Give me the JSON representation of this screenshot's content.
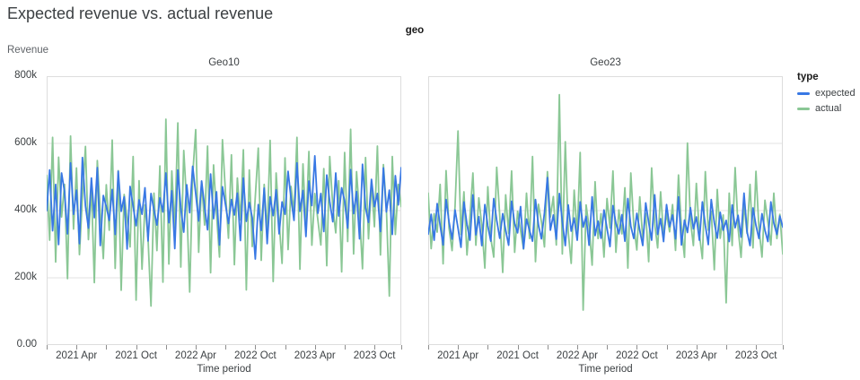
{
  "chart_data": {
    "type": "line",
    "title": "Expected revenue vs. actual revenue",
    "facet_field": "geo",
    "xlabel": "Time period",
    "ylabel": "Revenue",
    "y_unit": "thousands",
    "y_max": 800,
    "ylim": [
      0,
      800000
    ],
    "grid": "horizontal-only",
    "y_ticks": [
      {
        "value": 0,
        "label": "0.00"
      },
      {
        "value": 200,
        "label": "200k"
      },
      {
        "value": 400,
        "label": "400k"
      },
      {
        "value": 600,
        "label": "600k"
      },
      {
        "value": 800,
        "label": "800k"
      }
    ],
    "x_tick_indices": [
      10,
      30,
      50,
      70,
      90,
      110
    ],
    "x_tick_labels": [
      "2021 Apr",
      "2021 Oct",
      "2022 Apr",
      "2022 Oct",
      "2023 Apr",
      "2023 Oct"
    ],
    "x_minor_tick_indices": [
      0,
      20,
      40,
      60,
      80,
      100,
      119
    ],
    "x_range_note": "weekly-like points from 2021 Jan through 2023 Dec, values estimated in thousands",
    "legend": {
      "title": "type",
      "position": "top-right",
      "entries": [
        {
          "label": "expected",
          "color": "#3878e4"
        },
        {
          "label": "actual",
          "color": "#8ac795"
        }
      ]
    },
    "panels": [
      {
        "title": "Geo10",
        "series": [
          {
            "name": "expected",
            "values": [
              400,
              521,
              340,
              478,
              299,
              512,
              456,
              331,
              542,
              389,
              461,
              302,
              558,
              414,
              348,
              497,
              379,
              528,
              296,
              445,
              412,
              371,
              463,
              329,
              517,
              398,
              441,
              286,
              472,
              413,
              355,
              432,
              389,
              468,
              310,
              451,
              402,
              357,
              438,
              396,
              512,
              364,
              459,
              287,
              521,
              408,
              336,
              477,
              394,
              532,
              451,
              369,
              488,
              412,
              343,
              509,
              376,
              456,
              298,
              471,
              418,
              362,
              433,
              387,
              452,
              311,
              497,
              368,
              424,
              379,
              256,
              418,
              341,
              467,
              302,
              441,
              385,
              462,
              331,
              426,
              389,
              517,
              436,
              371,
              542,
              398,
              460,
              323,
              488,
              415,
              563,
              392,
              451,
              338,
              506,
              427,
              367,
              512,
              384,
              468,
              429,
              348,
              522,
              391,
              457,
              316,
              538,
              409,
              365,
              493,
              412,
              451,
              338,
              527,
              396,
              461,
              329,
              504,
              417,
              528
            ]
          },
          {
            "name": "actual",
            "values": [
              505,
              312,
              618,
              247,
              559,
              381,
              478,
              198,
              622,
              345,
              527,
              269,
              438,
              591,
              314,
              472,
              186,
              549,
              398,
              257,
              477,
              342,
              610,
              228,
              519,
              163,
              448,
              377,
              292,
              561,
              134,
              489,
              226,
              417,
              318,
              116,
              452,
              281,
              533,
              187,
              672,
              241,
              518,
              348,
              661,
              232,
              579,
              421,
              158,
              503,
              641,
              276,
              488,
              357,
              592,
              215,
              536,
              389,
              262,
              611,
              452,
              318,
              566,
              239,
              497,
              372,
              581,
              164,
              521,
              293,
              441,
              586,
              252,
              478,
              331,
              609,
              189,
              512,
              367,
              243,
              557,
              284,
              472,
              394,
              618,
              226,
              539,
              348,
              576,
              297,
              451,
              372,
              298,
              525,
              236,
              561,
              412,
              334,
              489,
              218,
              573,
              308,
              642,
              271,
              516,
              389,
              227,
              558,
              316,
              483,
              352,
              592,
              268,
              537,
              409,
              146,
              561,
              329,
              478,
              412
            ]
          }
        ]
      },
      {
        "title": "Geo23",
        "series": [
          {
            "name": "expected",
            "values": [
              330,
              389,
              312,
              421,
              356,
              298,
              433,
              367,
              315,
              402,
              348,
              291,
              426,
              359,
              312,
              447,
              328,
              382,
              296,
              418,
              355,
              309,
              436,
              372,
              318,
              391,
              342,
              297,
              428,
              361,
              334,
              412,
              287,
              375,
              341,
              309,
              433,
              358,
              316,
              394,
              498,
              342,
              387,
              315,
              451,
              368,
              296,
              417,
              339,
              378,
              312,
              426,
              351,
              383,
              297,
              441,
              326,
              369,
              318,
              402,
              347,
              293,
              415,
              362,
              331,
              388,
              309,
              436,
              354,
              317,
              392,
              341,
              296,
              423,
              365,
              312,
              447,
              329,
              376,
              308,
              418,
              352,
              387,
              316,
              441,
              298,
              372,
              335,
              409,
              346,
              381,
              312,
              426,
              357,
              299,
              433,
              364,
              318,
              395,
              342,
              371,
              308,
              417,
              349,
              386,
              321,
              452,
              337,
              296,
              408,
              356,
              317,
              391,
              342,
              308,
              426,
              363,
              329,
              384,
              351
            ]
          },
          {
            "name": "actual",
            "values": [
              452,
              287,
              391,
              336,
              478,
              242,
              519,
              348,
              281,
              412,
              637,
              329,
              456,
              268,
              381,
              512,
              297,
              438,
              356,
              229,
              471,
              318,
              262,
              529,
              384,
              216,
              447,
              332,
              518,
              276,
              398,
              341,
              286,
              452,
              317,
              561,
              248,
              419,
              367,
              292,
              516,
              381,
              442,
              298,
              745,
              271,
              605,
              336,
              243,
              461,
              328,
              573,
              104,
              417,
              352,
              238,
              486,
              317,
              391,
              262,
              436,
              348,
              518,
              276,
              402,
              331,
              468,
              229,
              512,
              357,
              283,
              441,
              316,
              392,
              248,
              527,
              361,
              289,
              456,
              324,
              391,
              337,
              418,
              282,
              506,
              348,
              261,
              601,
              372,
              296,
              481,
              329,
              257,
              516,
              342,
              398,
              224,
              463,
              318,
              387,
              126,
              452,
              296,
              528,
              347,
              261,
              419,
              332,
              478,
              289,
              517,
              348,
              262,
              431,
              366,
              298,
              452,
              317,
              389,
              271
            ]
          }
        ]
      }
    ],
    "colors": {
      "grid": "#e3e3e3",
      "panel_border": "#dddddd",
      "tick_mark": "#8f8f8f",
      "axis_text": "#3c4043",
      "title_text": "#3c4043"
    }
  }
}
